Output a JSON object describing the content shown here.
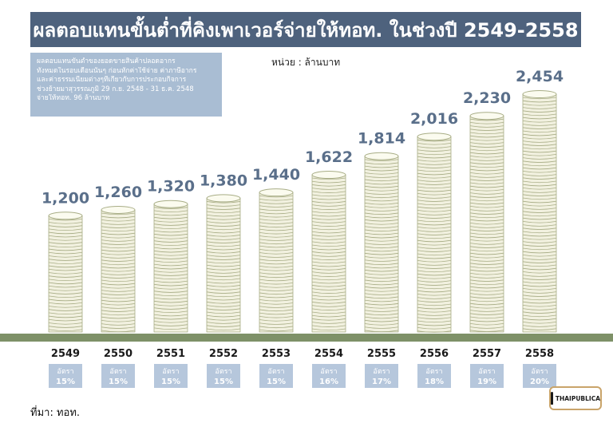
{
  "header": {
    "title": "ผลตอบแทนขั้นต่ำที่คิงเพาเวอร์จ่ายให้ทอท. ในช่วงปี 2549-2558"
  },
  "note": {
    "lines": [
      "ผลตอบแทนขั้นต่ำของยอดขายสินค้าปลอดอากร",
      "ทั้งหมดในรอบเดือนนั้นๆ ก่อนหักค่าใช้จ่าย ค่าภาษีอากร",
      "และค่าธรรมเนียมต่างๆที่เกี่ยวกับการประกอบกิจการ",
      "ช่วงย้ายมาสุวรรณภูมิ 29 ก.ย. 2548 - 31 ธ.ค. 2548",
      "จ่ายให้ทอท. 96 ล้านบาท"
    ]
  },
  "unit_label": "หน่วย : ล้านบาท",
  "source": "ที่มา: ทอท.",
  "logo": {
    "text": "THAIPUBLICA",
    "icon": "keyhole-icon"
  },
  "colors": {
    "title_bg": "#4e627d",
    "note_bg": "#a9bdd3",
    "value_text": "#5a6f8a",
    "coin": "#f2f1e0",
    "coin_stroke": "#a8ad86",
    "ground": "#7e9168",
    "rate_badge": "#b6c7dc"
  },
  "chart_data": {
    "type": "bar",
    "categories": [
      "2549",
      "2550",
      "2551",
      "2552",
      "2553",
      "2554",
      "2555",
      "2556",
      "2557",
      "2558"
    ],
    "values": [
      1200,
      1260,
      1320,
      1380,
      1440,
      1622,
      1814,
      2016,
      2230,
      2454
    ],
    "value_labels": [
      "1,200",
      "1,260",
      "1,320",
      "1,380",
      "1,440",
      "1,622",
      "1,814",
      "2,016",
      "2,230",
      "2,454"
    ],
    "rate_label": "อัตรา",
    "rates": [
      "15%",
      "15%",
      "15%",
      "15%",
      "15%",
      "16%",
      "17%",
      "18%",
      "19%",
      "20%"
    ],
    "ylim": [
      0,
      2454
    ],
    "bar_style": "coin-stacks",
    "grid": false
  }
}
